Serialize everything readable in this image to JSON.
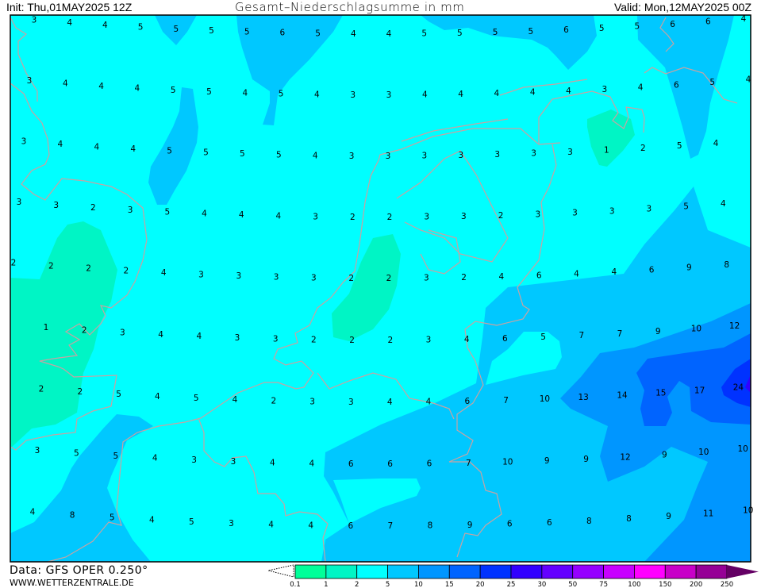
{
  "header": {
    "init": "Init: Thu,01MAY2025 12Z",
    "title": "Gesamt–Niederschlagsumme in mm",
    "valid": "Valid: Mon,12MAY2025 00Z"
  },
  "footer": {
    "data_source": "Data: GFS OPER 0.250°",
    "website": "WWW.WETTERZENTRALE.DE"
  },
  "legend": {
    "ticks": [
      "0.1",
      "1",
      "2",
      "5",
      "10",
      "15",
      "20",
      "25",
      "30",
      "50",
      "75",
      "100",
      "150",
      "200",
      "250"
    ],
    "colors": [
      "#00ff99",
      "#00f5c5",
      "#00ffff",
      "#00c8ff",
      "#0096ff",
      "#0064ff",
      "#0032ff",
      "#3200ff",
      "#6400ff",
      "#9600ff",
      "#c800ff",
      "#ff00ff",
      "#c800c8",
      "#960096"
    ],
    "overflow_color": "#640064"
  },
  "map": {
    "unit": "mm",
    "region_colors": {
      "level_1_2": "#00f5c5",
      "level_2_5": "#00ffff",
      "level_5_10": "#00c8ff",
      "level_10_15": "#0096ff",
      "level_15_20": "#0064ff",
      "level_20_25": "#0032ff",
      "level_25_30": "#3200ff",
      "border": "#c8a2a2"
    },
    "grid_values": [
      [
        3,
        4,
        4,
        5,
        5,
        5,
        5,
        6,
        5,
        4,
        4,
        5,
        5,
        5,
        5,
        6,
        5,
        5,
        6,
        6,
        4
      ],
      [
        3,
        4,
        4,
        4,
        5,
        5,
        4,
        5,
        4,
        3,
        3,
        4,
        4,
        4,
        4,
        4,
        3,
        4,
        6,
        5,
        4
      ],
      [
        3,
        4,
        4,
        4,
        5,
        5,
        5,
        5,
        4,
        3,
        3,
        3,
        3,
        3,
        3,
        3,
        1,
        2,
        5,
        4
      ],
      [
        3,
        3,
        2,
        3,
        5,
        4,
        4,
        4,
        3,
        2,
        2,
        3,
        3,
        2,
        3,
        3,
        3,
        3,
        5,
        4
      ],
      [
        2,
        2,
        2,
        2,
        4,
        3,
        3,
        3,
        3,
        2,
        2,
        3,
        2,
        4,
        6,
        4,
        4,
        6,
        9,
        8
      ],
      [
        1,
        2,
        3,
        4,
        4,
        3,
        3,
        2,
        2,
        2,
        3,
        4,
        6,
        5,
        7,
        7,
        9,
        10,
        12
      ],
      [
        2,
        2,
        5,
        4,
        5,
        4,
        2,
        3,
        3,
        4,
        4,
        6,
        7,
        10,
        13,
        14,
        15,
        17,
        24
      ],
      [
        3,
        5,
        5,
        4,
        3,
        3,
        4,
        4,
        6,
        6,
        6,
        7,
        10,
        9,
        9,
        12,
        9,
        10,
        10
      ],
      [
        4,
        8,
        5,
        4,
        5,
        3,
        4,
        4,
        6,
        7,
        8,
        9,
        6,
        6,
        8,
        8,
        9,
        11,
        10
      ]
    ]
  }
}
